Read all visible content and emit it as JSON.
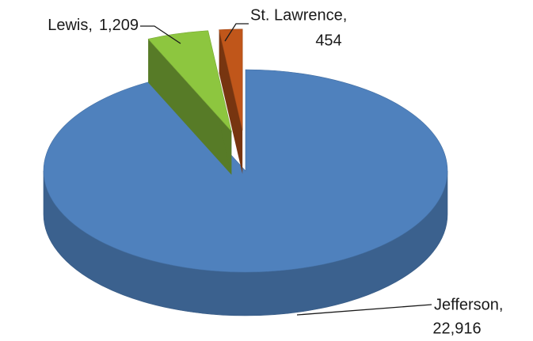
{
  "chart_data": {
    "type": "pie",
    "pie_3d": true,
    "categories": [
      "Jefferson,",
      "Lewis,",
      "St. Lawrence,"
    ],
    "values": [
      22916,
      1209,
      454
    ],
    "value_labels": [
      "22,916",
      "1,209",
      "454"
    ],
    "colors": [
      "#4f81bd",
      "#8dc63f",
      "#c0561a"
    ],
    "explode": [
      false,
      true,
      true
    ]
  }
}
